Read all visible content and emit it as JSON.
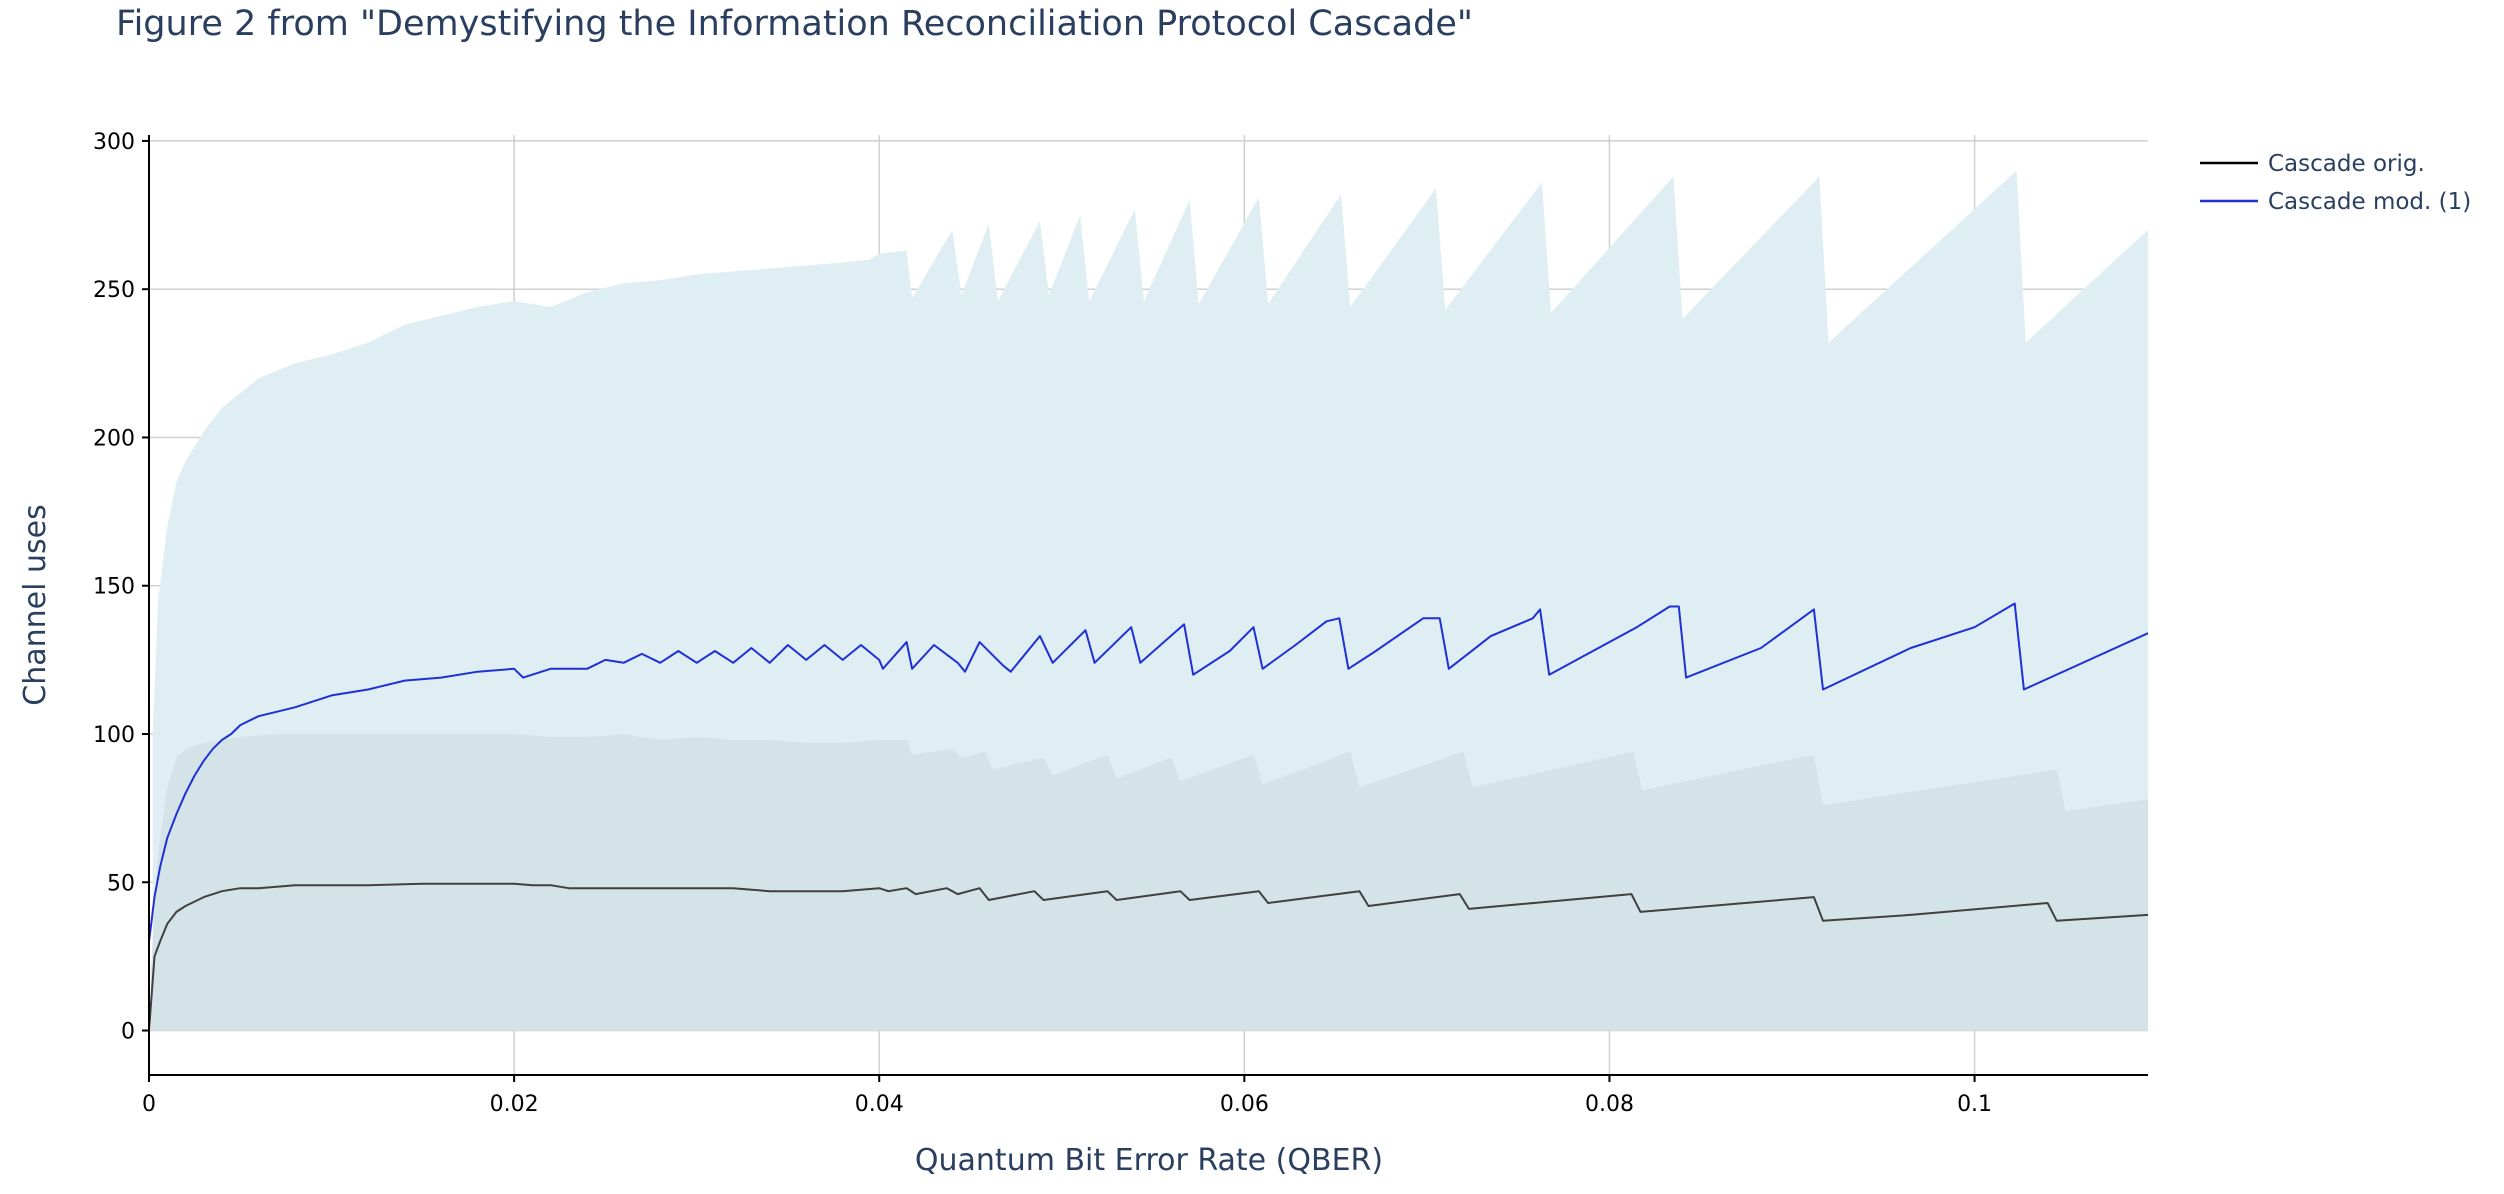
{
  "chart_data": {
    "type": "line",
    "title": "Figure 2 from \"Demystifying the Information Reconciliation Protocol Cascade\"",
    "xlabel": "Quantum Bit Error Rate (QBER)",
    "ylabel": "Channel uses",
    "xlim": [
      0,
      0.1095
    ],
    "ylim": [
      -15,
      302
    ],
    "x_ticks": [
      {
        "value": 0,
        "label": "0"
      },
      {
        "value": 0.02,
        "label": "0.02"
      },
      {
        "value": 0.04,
        "label": "0.04"
      },
      {
        "value": 0.06,
        "label": "0.06"
      },
      {
        "value": 0.08,
        "label": "0.08"
      },
      {
        "value": 0.1,
        "label": "0.1"
      }
    ],
    "y_ticks": [
      {
        "value": 0,
        "label": "0"
      },
      {
        "value": 50,
        "label": "50"
      },
      {
        "value": 100,
        "label": "100"
      },
      {
        "value": 150,
        "label": "150"
      },
      {
        "value": 200,
        "label": "200"
      },
      {
        "value": 250,
        "label": "250"
      },
      {
        "value": 300,
        "label": "300"
      }
    ],
    "grid": true,
    "legend_position": "top-right",
    "series": [
      {
        "name": "Cascade orig.",
        "color": "#404040",
        "band_color": "#d4e3e8",
        "band_upper": {
          "x": [
            0.0001,
            0.0005,
            0.001,
            0.0015,
            0.002,
            0.003,
            0.004,
            0.005,
            0.007,
            0.01,
            0.015,
            0.02,
            0.022,
            0.024,
            0.026,
            0.028,
            0.03,
            0.032,
            0.034,
            0.036,
            0.038,
            0.04,
            0.0415,
            0.0418,
            0.044,
            0.0445,
            0.0458,
            0.0462,
            0.049,
            0.0495,
            0.0525,
            0.053,
            0.056,
            0.0565,
            0.0605,
            0.061,
            0.0658,
            0.0663,
            0.072,
            0.0725,
            0.0813,
            0.0818,
            0.0912,
            0.0917,
            0.1045,
            0.105,
            0.1095
          ],
          "y": [
            20,
            60,
            82,
            92,
            95,
            97,
            98,
            99,
            100,
            100,
            100,
            100,
            99,
            99,
            100,
            98,
            99,
            98,
            98,
            97,
            97,
            98,
            98,
            93,
            95,
            92,
            94,
            88,
            92,
            86,
            93,
            85,
            92,
            84,
            93,
            83,
            94,
            82,
            94,
            82,
            94,
            81,
            93,
            76,
            88,
            74,
            78
          ]
        },
        "x": [
          0,
          0.0003,
          0.0006,
          0.001,
          0.0015,
          0.002,
          0.003,
          0.004,
          0.005,
          0.006,
          0.008,
          0.01,
          0.012,
          0.015,
          0.018,
          0.02,
          0.021,
          0.022,
          0.023,
          0.024,
          0.026,
          0.028,
          0.03,
          0.032,
          0.034,
          0.036,
          0.038,
          0.04,
          0.0405,
          0.0415,
          0.042,
          0.0437,
          0.0443,
          0.0455,
          0.046,
          0.0485,
          0.049,
          0.0525,
          0.053,
          0.0565,
          0.057,
          0.0608,
          0.0613,
          0.0663,
          0.0668,
          0.0718,
          0.0723,
          0.0812,
          0.0817,
          0.0912,
          0.0917,
          0.0965,
          0.104,
          0.1045,
          0.1095
        ],
        "values": [
          0,
          25,
          30,
          36,
          40,
          42,
          45,
          47,
          48,
          48,
          49,
          49,
          49,
          49.5,
          49.5,
          49.5,
          49,
          49,
          48,
          48,
          48,
          48,
          48,
          48,
          47,
          47,
          47,
          48,
          47,
          48,
          46,
          48,
          46,
          48,
          44,
          47,
          44,
          47,
          44,
          47,
          44,
          47,
          43,
          47,
          42,
          46,
          41,
          46,
          40,
          45,
          37,
          39,
          43,
          37,
          39
        ]
      },
      {
        "name": "Cascade mod. (1)",
        "color": "#1f30d6",
        "band_color": "#deeef3",
        "band_upper": {
          "x": [
            0.0002,
            0.0005,
            0.001,
            0.0015,
            0.002,
            0.003,
            0.004,
            0.005,
            0.006,
            0.008,
            0.01,
            0.012,
            0.014,
            0.016,
            0.018,
            0.02,
            0.022,
            0.024,
            0.026,
            0.028,
            0.03,
            0.032,
            0.034,
            0.036,
            0.038,
            0.0395,
            0.04,
            0.0415,
            0.0418,
            0.044,
            0.0445,
            0.046,
            0.0465,
            0.0488,
            0.0493,
            0.051,
            0.0515,
            0.054,
            0.0545,
            0.057,
            0.0575,
            0.0608,
            0.0613,
            0.0653,
            0.0658,
            0.0705,
            0.071,
            0.0763,
            0.0768,
            0.0835,
            0.084,
            0.0915,
            0.092,
            0.1023,
            0.1028,
            0.1095
          ],
          "y": [
            100,
            145,
            170,
            185,
            192,
            202,
            210,
            215,
            220,
            225,
            228,
            232,
            238,
            241,
            244,
            246,
            244,
            249,
            252,
            253,
            255,
            256,
            257,
            258,
            259,
            260,
            262,
            263,
            247,
            270,
            248,
            272,
            246,
            273,
            248,
            275,
            246,
            277,
            246,
            280,
            245,
            281,
            245,
            282,
            244,
            284,
            243,
            286,
            242,
            288,
            240,
            288,
            232,
            290,
            232,
            270
          ]
        },
        "x": [
          0,
          0.0003,
          0.0006,
          0.001,
          0.0015,
          0.002,
          0.0025,
          0.003,
          0.0035,
          0.004,
          0.0045,
          0.005,
          0.006,
          0.008,
          0.01,
          0.012,
          0.014,
          0.016,
          0.018,
          0.02,
          0.0205,
          0.022,
          0.024,
          0.025,
          0.026,
          0.027,
          0.028,
          0.029,
          0.03,
          0.031,
          0.032,
          0.033,
          0.034,
          0.035,
          0.036,
          0.037,
          0.038,
          0.039,
          0.04,
          0.0402,
          0.0415,
          0.0418,
          0.043,
          0.0443,
          0.0447,
          0.0455,
          0.0468,
          0.0472,
          0.0488,
          0.0495,
          0.0513,
          0.0518,
          0.0538,
          0.0543,
          0.0567,
          0.0572,
          0.0592,
          0.0605,
          0.061,
          0.0628,
          0.0645,
          0.0652,
          0.0657,
          0.0672,
          0.0698,
          0.0707,
          0.0712,
          0.0735,
          0.0758,
          0.0762,
          0.0767,
          0.0815,
          0.0833,
          0.0838,
          0.0842,
          0.0883,
          0.0912,
          0.0917,
          0.0965,
          0.1,
          0.1022,
          0.1027,
          0.1095
        ],
        "values": [
          30,
          45,
          55,
          65,
          73,
          80,
          86,
          91,
          95,
          98,
          100,
          103,
          106,
          109,
          113,
          115,
          118,
          119,
          121,
          122,
          119,
          122,
          122,
          125,
          124,
          127,
          124,
          128,
          124,
          128,
          124,
          129,
          124,
          130,
          125,
          130,
          125,
          130,
          125,
          122,
          131,
          122,
          130,
          124,
          121,
          131,
          123,
          121,
          133,
          124,
          135,
          124,
          136,
          124,
          137,
          120,
          128,
          136,
          122,
          130,
          138,
          139,
          122,
          128,
          139,
          139,
          122,
          133,
          139,
          142,
          120,
          136,
          143,
          143,
          119,
          129,
          142,
          115,
          129,
          136,
          144,
          115,
          134
        ]
      }
    ]
  }
}
